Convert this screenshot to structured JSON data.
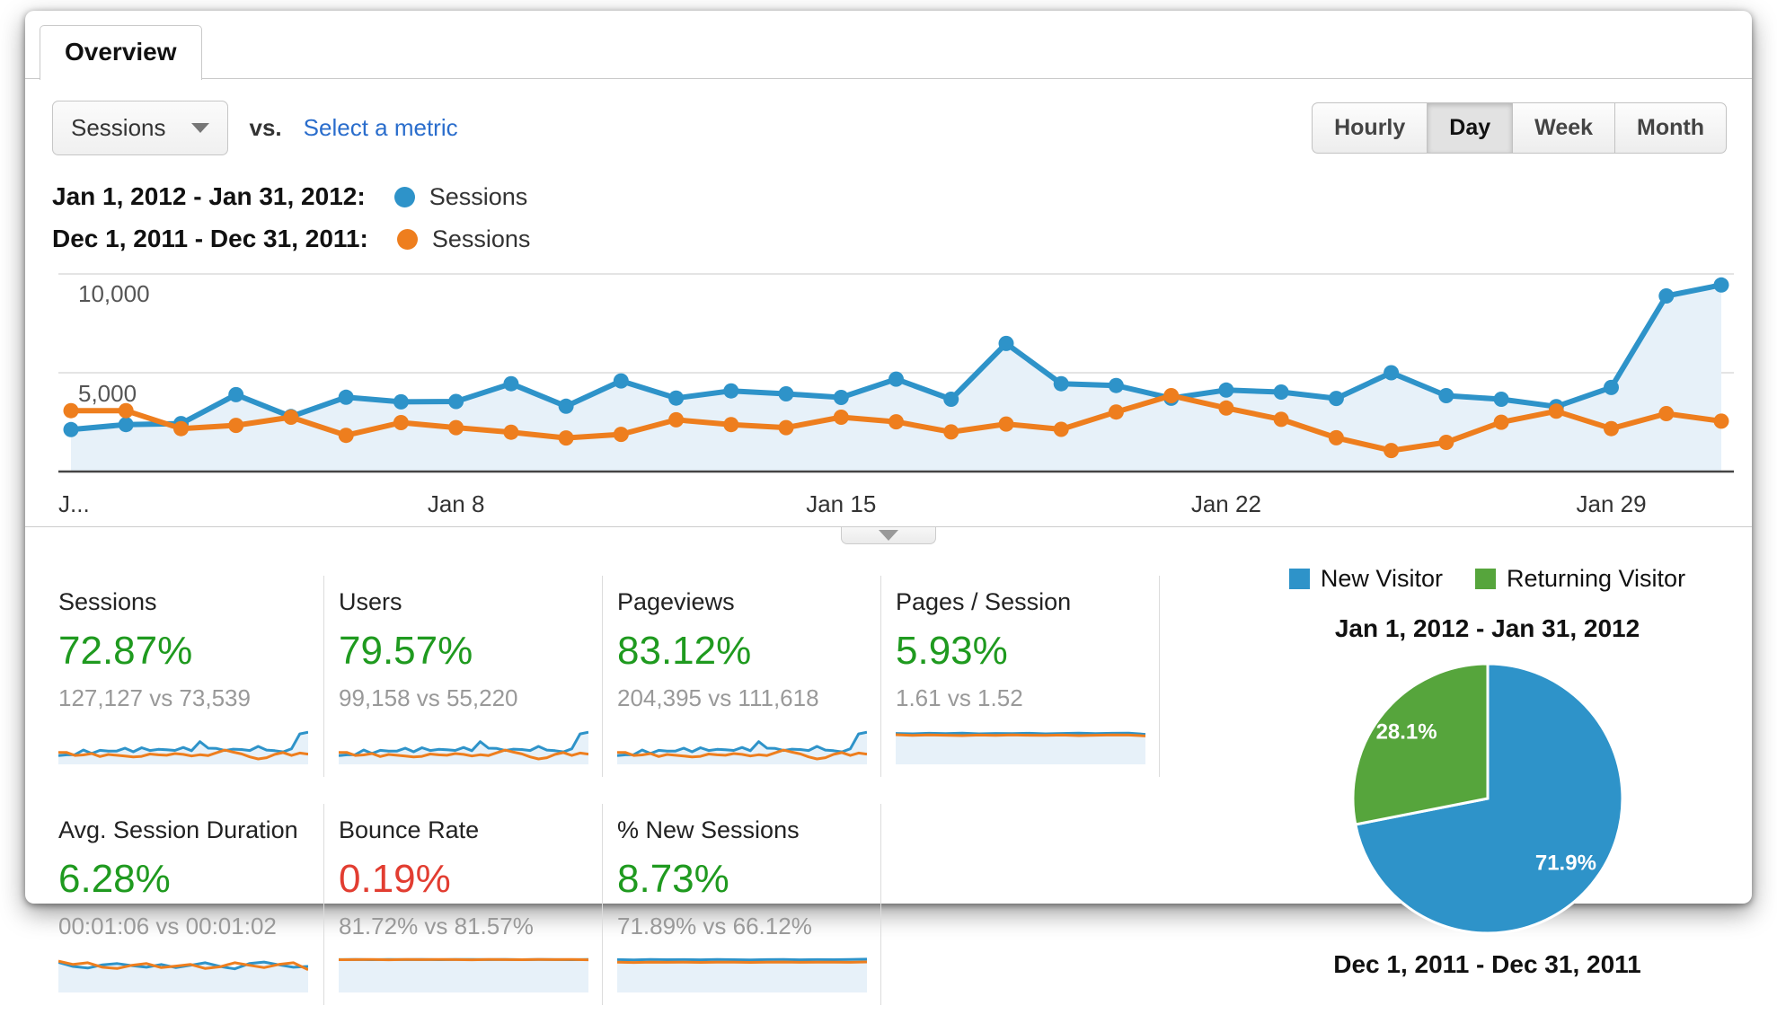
{
  "tab": {
    "label": "Overview"
  },
  "controls": {
    "metric_select": {
      "value": "Sessions"
    },
    "vs_label": "vs.",
    "select_metric_link": "Select a metric",
    "granularity": {
      "options": [
        "Hourly",
        "Day",
        "Week",
        "Month"
      ],
      "selected": "Day"
    }
  },
  "legend": [
    {
      "range": "Jan 1, 2012 - Jan 31, 2012:",
      "metric": "Sessions",
      "color": "#2e93c9"
    },
    {
      "range": "Dec 1, 2011 - Dec 31, 2011:",
      "metric": "Sessions",
      "color": "#ee7e1e"
    }
  ],
  "colors": {
    "blue": "#2e93c9",
    "orange": "#ee7e1e",
    "area": "#e7f1f9",
    "green": "#1f9a1f",
    "red": "#e23d31",
    "grid": "#e4e4e4",
    "baseline": "#444444"
  },
  "chart_data": [
    {
      "id": "sessions-timeseries",
      "type": "line",
      "metric": "Sessions",
      "x_unit": "day",
      "yticks": [
        "10,000",
        "5,000"
      ],
      "ylim": [
        0,
        10000
      ],
      "xticks": [
        {
          "label": "J...",
          "day": 1
        },
        {
          "label": "Jan 8",
          "day": 8
        },
        {
          "label": "Jan 15",
          "day": 15
        },
        {
          "label": "Jan 22",
          "day": 22
        },
        {
          "label": "Jan 29",
          "day": 29
        }
      ],
      "series": [
        {
          "name": "Jan 1, 2012 - Jan 31, 2012",
          "color": "#2e93c9",
          "values": [
            2150,
            2400,
            2450,
            3900,
            2800,
            3770,
            3540,
            3560,
            4450,
            3320,
            4590,
            3730,
            4090,
            3940,
            3760,
            4680,
            3670,
            6470,
            4450,
            4360,
            3720,
            4130,
            4030,
            3710,
            5000,
            3850,
            3670,
            3300,
            4260,
            8850,
            9400
          ]
        },
        {
          "name": "Dec 1, 2011 - Dec 31, 2011",
          "color": "#ee7e1e",
          "values": [
            3100,
            3100,
            2200,
            2360,
            2770,
            1860,
            2500,
            2250,
            2020,
            1730,
            1910,
            2640,
            2400,
            2250,
            2770,
            2540,
            2030,
            2430,
            2160,
            3030,
            3850,
            3230,
            2660,
            1740,
            1100,
            1510,
            2520,
            3070,
            2200,
            2950,
            2570
          ]
        }
      ]
    },
    {
      "id": "visitor-type-pie",
      "type": "pie",
      "title": "Jan 1, 2012 - Jan 31, 2012",
      "footer": "Dec 1, 2011 - Dec 31, 2011",
      "slices": [
        {
          "label": "New Visitor",
          "value": 71.9,
          "color": "#2e93c9"
        },
        {
          "label": "Returning Visitor",
          "value": 28.1,
          "color": "#56a53c"
        }
      ]
    }
  ],
  "cards": [
    {
      "label": "Sessions",
      "pct": "72.87%",
      "trend": "up",
      "sub": "127,127 vs 73,539",
      "spark": {
        "main": true
      }
    },
    {
      "label": "Users",
      "pct": "79.57%",
      "trend": "up",
      "sub": "99,158 vs 55,220",
      "spark": {
        "main": true
      }
    },
    {
      "label": "Pageviews",
      "pct": "83.12%",
      "trend": "up",
      "sub": "204,395 vs 111,618",
      "spark": {
        "main": true
      }
    },
    {
      "label": "Pages / Session",
      "pct": "5.93%",
      "trend": "up",
      "sub": "1.61 vs 1.52",
      "spark": {
        "ymax": 1.8,
        "current": [
          1.62,
          1.6,
          1.63,
          1.61,
          1.64,
          1.6,
          1.62,
          1.61,
          1.63,
          1.6,
          1.62,
          1.64,
          1.61,
          1.63,
          1.64,
          1.57
        ],
        "previous": [
          1.55,
          1.51,
          1.54,
          1.52,
          1.5,
          1.53,
          1.51,
          1.54,
          1.52,
          1.51,
          1.53,
          1.5,
          1.52,
          1.54,
          1.53,
          1.48
        ]
      }
    },
    {
      "label": "Avg. Session Duration",
      "pct": "6.28%",
      "trend": "up",
      "sub": "00:01:06 vs 00:01:02",
      "spark": {
        "ymax": 80,
        "current": [
          70,
          60,
          56,
          64,
          67,
          62,
          58,
          65,
          57,
          63,
          69,
          60,
          54,
          67,
          71,
          64,
          58,
          60
        ],
        "previous": [
          73,
          65,
          69,
          58,
          55,
          63,
          67,
          57,
          61,
          65,
          55,
          59,
          69,
          63,
          57,
          65,
          69,
          52
        ]
      }
    },
    {
      "label": "Bounce Rate",
      "pct": "0.19%",
      "trend": "down",
      "sub": "81.72% vs 81.57%",
      "spark": {
        "ymax": 85,
        "current": [
          81.7,
          82.1,
          81.5,
          82.0,
          81.7,
          82.1,
          81.5,
          81.9,
          82.1,
          81.6,
          81.9,
          81.4,
          82.0,
          81.7,
          81.5,
          81.9
        ],
        "previous": [
          81.4,
          81.8,
          82.0,
          81.3,
          81.9,
          81.6,
          82.0,
          81.7,
          81.3,
          82.0,
          81.8,
          81.5,
          82.0,
          81.6,
          81.9,
          81.2
        ]
      }
    },
    {
      "label": "% New Sessions",
      "pct": "8.73%",
      "trend": "up",
      "sub": "71.89% vs 66.12%",
      "spark": {
        "ymax": 75,
        "current": [
          72,
          71.4,
          72.3,
          71.8,
          72.1,
          71.6,
          72.2,
          71.9,
          71.5,
          72.0,
          72.3,
          71.7,
          72.0,
          71.8,
          72.4,
          73.2
        ],
        "previous": [
          66,
          65.4,
          66.3,
          65.8,
          66.1,
          65.7,
          66.2,
          66.0,
          65.6,
          66.1,
          66.4,
          65.8,
          66.0,
          66.2,
          65.9,
          66.6
        ]
      }
    }
  ]
}
